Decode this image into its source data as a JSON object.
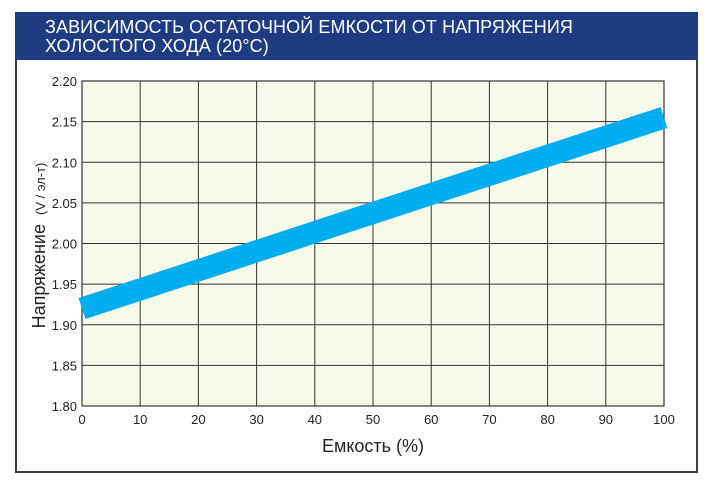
{
  "header": {
    "title_line1": "ЗАВИСИМОСТЬ ОСТАТОЧНОЙ ЕМКОСТИ ОТ НАПРЯЖЕНИЯ",
    "title_line2": "ХОЛОСТОГО ХОДА (20°C)"
  },
  "colors": {
    "header_bg": "#1f3b82",
    "plot_bg": "#f7f9ea",
    "line": "#00aeef",
    "grid": "#333333"
  },
  "chart_data": {
    "type": "line",
    "title": "ЗАВИСИМОСТЬ ОСТАТОЧНОЙ ЕМКОСТИ ОТ НАПРЯЖЕНИЯ ХОЛОСТОГО ХОДА (20°C)",
    "xlabel": "Емкость (%)",
    "ylabel_main": "Напряжение",
    "ylabel_unit": "(V / эл-т)",
    "xlim": [
      0,
      100
    ],
    "ylim": [
      1.8,
      2.2
    ],
    "x_ticks": [
      "0",
      "10",
      "20",
      "30",
      "40",
      "50",
      "60",
      "70",
      "80",
      "90",
      "100"
    ],
    "y_ticks": [
      "1.80",
      "1.85",
      "1.90",
      "1.95",
      "2.00",
      "2.05",
      "2.10",
      "2.15",
      "2.20"
    ],
    "grid": true,
    "series": [
      {
        "x": [
          0,
          100
        ],
        "y": [
          1.92,
          2.155
        ]
      }
    ]
  }
}
